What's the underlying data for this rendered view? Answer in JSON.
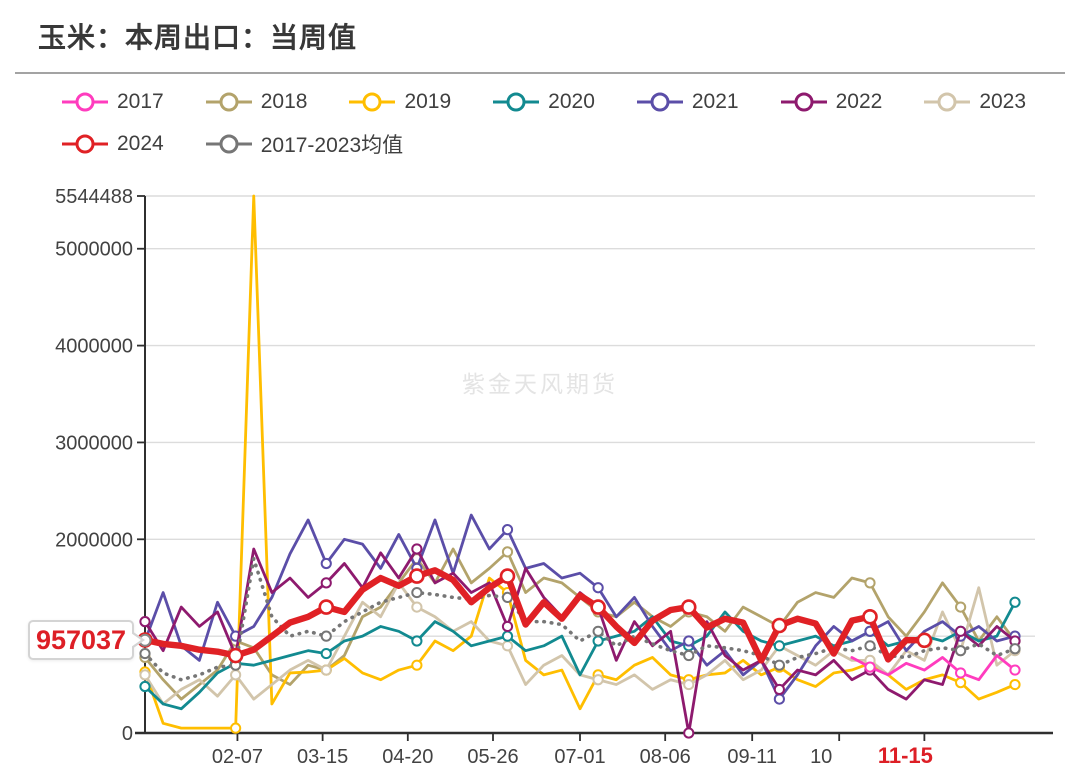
{
  "title": "玉米：本周出口：当周值",
  "watermark": "紫金天风期货",
  "callout": {
    "text": "957037",
    "value": 957037
  },
  "legend": {
    "rows": [
      [
        "2017",
        "2018",
        "2019",
        "2020",
        "2021",
        "2022",
        "2023"
      ],
      [
        "2024",
        "2017-2023均值"
      ]
    ]
  },
  "chart_data": {
    "type": "line",
    "title": "玉米：本周出口：当周值",
    "xlabel": "",
    "ylabel": "",
    "x_unit": "week-of-year (weekly points)",
    "ylim": [
      0,
      5544488
    ],
    "grid": true,
    "legend_position": "top",
    "y_axis_labels": [
      {
        "value": 0,
        "label": "0"
      },
      {
        "value": 2000000,
        "label": "2000000"
      },
      {
        "value": 3000000,
        "label": "3000000"
      },
      {
        "value": 4000000,
        "label": "4000000"
      },
      {
        "value": 5000000,
        "label": "5000000"
      },
      {
        "value": 5544488,
        "label": "5544488"
      }
    ],
    "grid_values": [
      1000000,
      2000000,
      3000000,
      4000000,
      5000000,
      5544488
    ],
    "x_ticks": [
      {
        "label": "02-07",
        "week": 5.1
      },
      {
        "label": "03-15",
        "week": 9.8
      },
      {
        "label": "04-20",
        "week": 14.5
      },
      {
        "label": "05-26",
        "week": 19.2
      },
      {
        "label": "07-01",
        "week": 24.0
      },
      {
        "label": "08-06",
        "week": 28.7
      },
      {
        "label": "09-11",
        "week": 33.5
      },
      {
        "label": "10",
        "week": 38.3,
        "label_offset": -18
      },
      {
        "label": "11-15",
        "week": 43.0,
        "label_offset": -19,
        "highlight": true
      }
    ],
    "highlight_color": "#dd1f26",
    "series": [
      {
        "name": "2017",
        "color": "#ff3cbe",
        "start_week": 39,
        "values": [
          780000,
          680000,
          600000,
          720000,
          650000,
          780000,
          620000,
          550000,
          800000,
          650000
        ]
      },
      {
        "name": "2018",
        "color": "#b3a36b",
        "start_week": 0,
        "values": [
          780000,
          550000,
          350000,
          500000,
          650000,
          950000,
          880000,
          600000,
          500000,
          700000,
          650000,
          800000,
          1200000,
          1300000,
          1550000,
          1800000,
          1550000,
          1900000,
          1550000,
          1700000,
          1870000,
          1450000,
          1600000,
          1550000,
          1400000,
          1250000,
          1200000,
          1350000,
          1200000,
          1100000,
          1250000,
          1200000,
          1050000,
          1300000,
          1200000,
          1100000,
          1350000,
          1450000,
          1400000,
          1600000,
          1550000,
          1200000,
          1000000,
          1250000,
          1550000,
          1300000,
          950000,
          1200000,
          950000
        ]
      },
      {
        "name": "2019",
        "color": "#ffbe00",
        "start_week": 0,
        "values": [
          630000,
          100000,
          50000,
          50000,
          50000,
          50000,
          5544488,
          300000,
          620000,
          630000,
          650000,
          770000,
          620000,
          550000,
          650000,
          700000,
          950000,
          850000,
          1000000,
          1600000,
          1450000,
          750000,
          600000,
          650000,
          250000,
          600000,
          550000,
          700000,
          780000,
          600000,
          550000,
          600000,
          620000,
          750000,
          600000,
          680000,
          550000,
          480000,
          620000,
          650000,
          720000,
          600000,
          450000,
          550000,
          600000,
          520000,
          350000,
          420000,
          500000
        ]
      },
      {
        "name": "2020",
        "color": "#128a90",
        "start_week": 0,
        "values": [
          480000,
          300000,
          250000,
          420000,
          620000,
          720000,
          700000,
          750000,
          800000,
          850000,
          820000,
          950000,
          1000000,
          1100000,
          1050000,
          950000,
          1150000,
          1050000,
          900000,
          950000,
          1000000,
          850000,
          900000,
          1000000,
          600000,
          950000,
          1000000,
          1050000,
          1200000,
          950000,
          900000,
          1000000,
          1250000,
          1050000,
          950000,
          900000,
          950000,
          1000000,
          900000,
          950000,
          1050000,
          900000,
          950000,
          1000000,
          950000,
          1050000,
          950000,
          1000000,
          1350000
        ]
      },
      {
        "name": "2021",
        "color": "#5b4ea8",
        "start_week": 0,
        "values": [
          950000,
          1450000,
          900000,
          750000,
          1350000,
          1000000,
          1100000,
          1400000,
          1850000,
          2200000,
          1750000,
          2000000,
          1950000,
          1700000,
          2050000,
          1700000,
          2200000,
          1650000,
          2250000,
          1900000,
          2100000,
          1700000,
          1750000,
          1600000,
          1650000,
          1500000,
          1200000,
          1400000,
          1100000,
          850000,
          950000,
          700000,
          850000,
          600000,
          750000,
          350000,
          600000,
          900000,
          1100000,
          950000,
          1050000,
          1150000,
          850000,
          1050000,
          1150000,
          1000000,
          1100000,
          950000,
          1000000
        ]
      },
      {
        "name": "2022",
        "color": "#8e1a6e",
        "start_week": 0,
        "values": [
          1150000,
          850000,
          1300000,
          1100000,
          1250000,
          800000,
          1900000,
          1450000,
          1600000,
          1400000,
          1550000,
          1750000,
          1500000,
          1860000,
          1600000,
          1900000,
          1550000,
          1650000,
          1450000,
          1550000,
          1100000,
          1700000,
          1400000,
          1200000,
          1450000,
          1300000,
          750000,
          1150000,
          900000,
          1050000,
          0,
          1150000,
          800000,
          650000,
          750000,
          450000,
          650000,
          600000,
          750000,
          550000,
          650000,
          450000,
          350000,
          550000,
          500000,
          1050000,
          900000,
          1100000,
          950000
        ]
      },
      {
        "name": "2023",
        "color": "#d2c5ab",
        "start_week": 0,
        "values": [
          600000,
          300000,
          450000,
          550000,
          380000,
          600000,
          350000,
          500000,
          650000,
          750000,
          650000,
          1000000,
          1350000,
          1200000,
          1550000,
          1300000,
          1200000,
          1050000,
          1150000,
          950000,
          900000,
          500000,
          700000,
          800000,
          600000,
          550000,
          500000,
          600000,
          450000,
          550000,
          500000,
          600000,
          750000,
          550000,
          650000,
          900000,
          800000,
          700000,
          850000,
          750000,
          750000,
          600000,
          850000,
          750000,
          1250000,
          850000,
          1500000,
          700000,
          850000
        ]
      },
      {
        "name": "2024",
        "color": "#e02125",
        "start_week": 0,
        "thick": true,
        "values": [
          960000,
          920000,
          900000,
          860000,
          840000,
          800000,
          860000,
          1000000,
          1140000,
          1200000,
          1300000,
          1250000,
          1480000,
          1600000,
          1520000,
          1620000,
          1680000,
          1580000,
          1350000,
          1500000,
          1620000,
          1120000,
          1350000,
          1180000,
          1420000,
          1300000,
          1100000,
          930000,
          1160000,
          1270000,
          1300000,
          1090000,
          1180000,
          1140000,
          750000,
          1110000,
          1180000,
          1130000,
          820000,
          1160000,
          1200000,
          760000,
          960000,
          957037
        ]
      },
      {
        "name": "2017-2023均值",
        "color": "#767676",
        "start_week": 0,
        "dotted": true,
        "values": [
          820000,
          620000,
          550000,
          600000,
          680000,
          700000,
          1800000,
          1200000,
          1000000,
          1050000,
          1000000,
          1150000,
          1250000,
          1350000,
          1400000,
          1450000,
          1430000,
          1400000,
          1380000,
          1420000,
          1400000,
          1150000,
          1150000,
          1120000,
          950000,
          1050000,
          900000,
          1000000,
          920000,
          850000,
          800000,
          900000,
          880000,
          850000,
          800000,
          700000,
          780000,
          820000,
          880000,
          850000,
          900000,
          800000,
          780000,
          850000,
          880000,
          850000,
          920000,
          800000,
          870000
        ]
      }
    ]
  }
}
